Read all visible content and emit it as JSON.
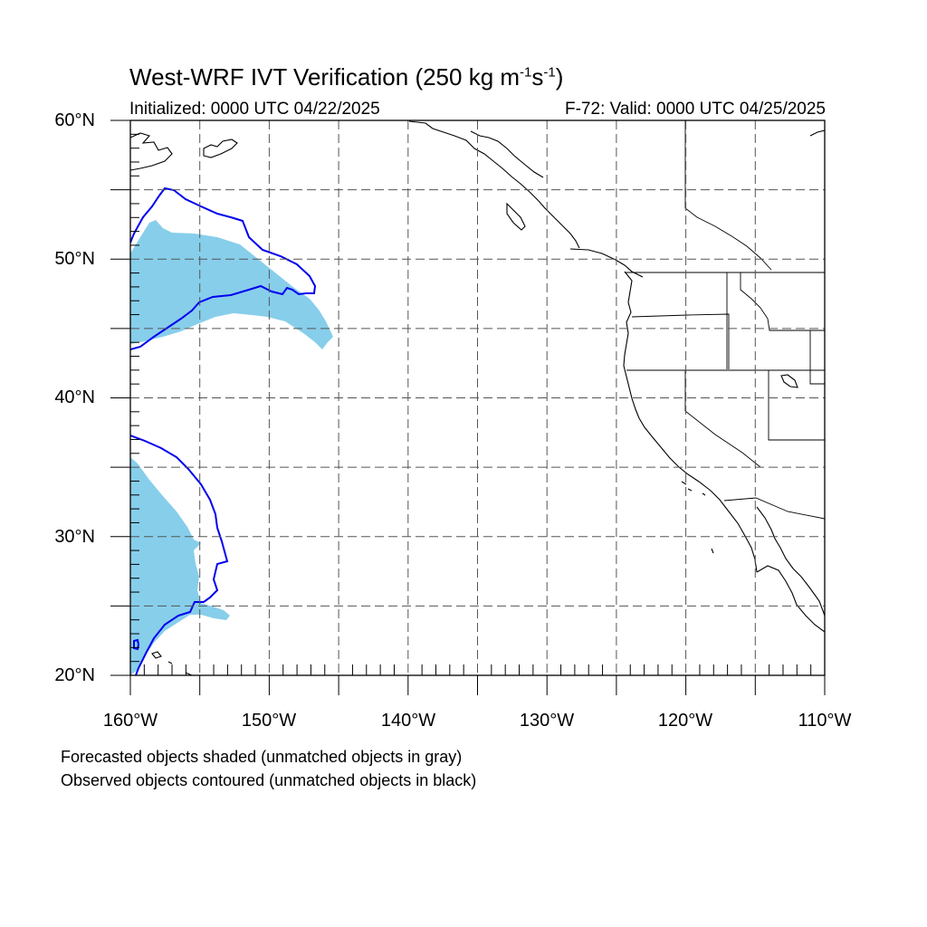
{
  "title": {
    "prefix": "West-WRF IVT Verification (250 kg m",
    "exp1": "-1",
    "middle": "s",
    "exp2": "-1",
    "suffix": ")"
  },
  "subtitle_left": "Initialized: 0000 UTC 04/22/2025",
  "subtitle_right": "F-72: Valid: 0000 UTC 04/25/2025",
  "axes": {
    "y_labels": [
      "60°N",
      "50°N",
      "40°N",
      "30°N",
      "20°N"
    ],
    "x_labels": [
      "160°W",
      "150°W",
      "140°W",
      "130°W",
      "120°W",
      "110°W"
    ]
  },
  "notes": [
    "Forecasted objects shaded (unmatched objects in gray)",
    "Observed objects contoured (unmatched objects in black)"
  ],
  "colors": {
    "forecast_fill": "#87CEEB",
    "observed_contour": "#0000EE",
    "coastline": "#000000",
    "grid": "#555555"
  },
  "map_extent": {
    "lon": [
      -160,
      -110
    ],
    "lat": [
      20,
      60
    ]
  }
}
